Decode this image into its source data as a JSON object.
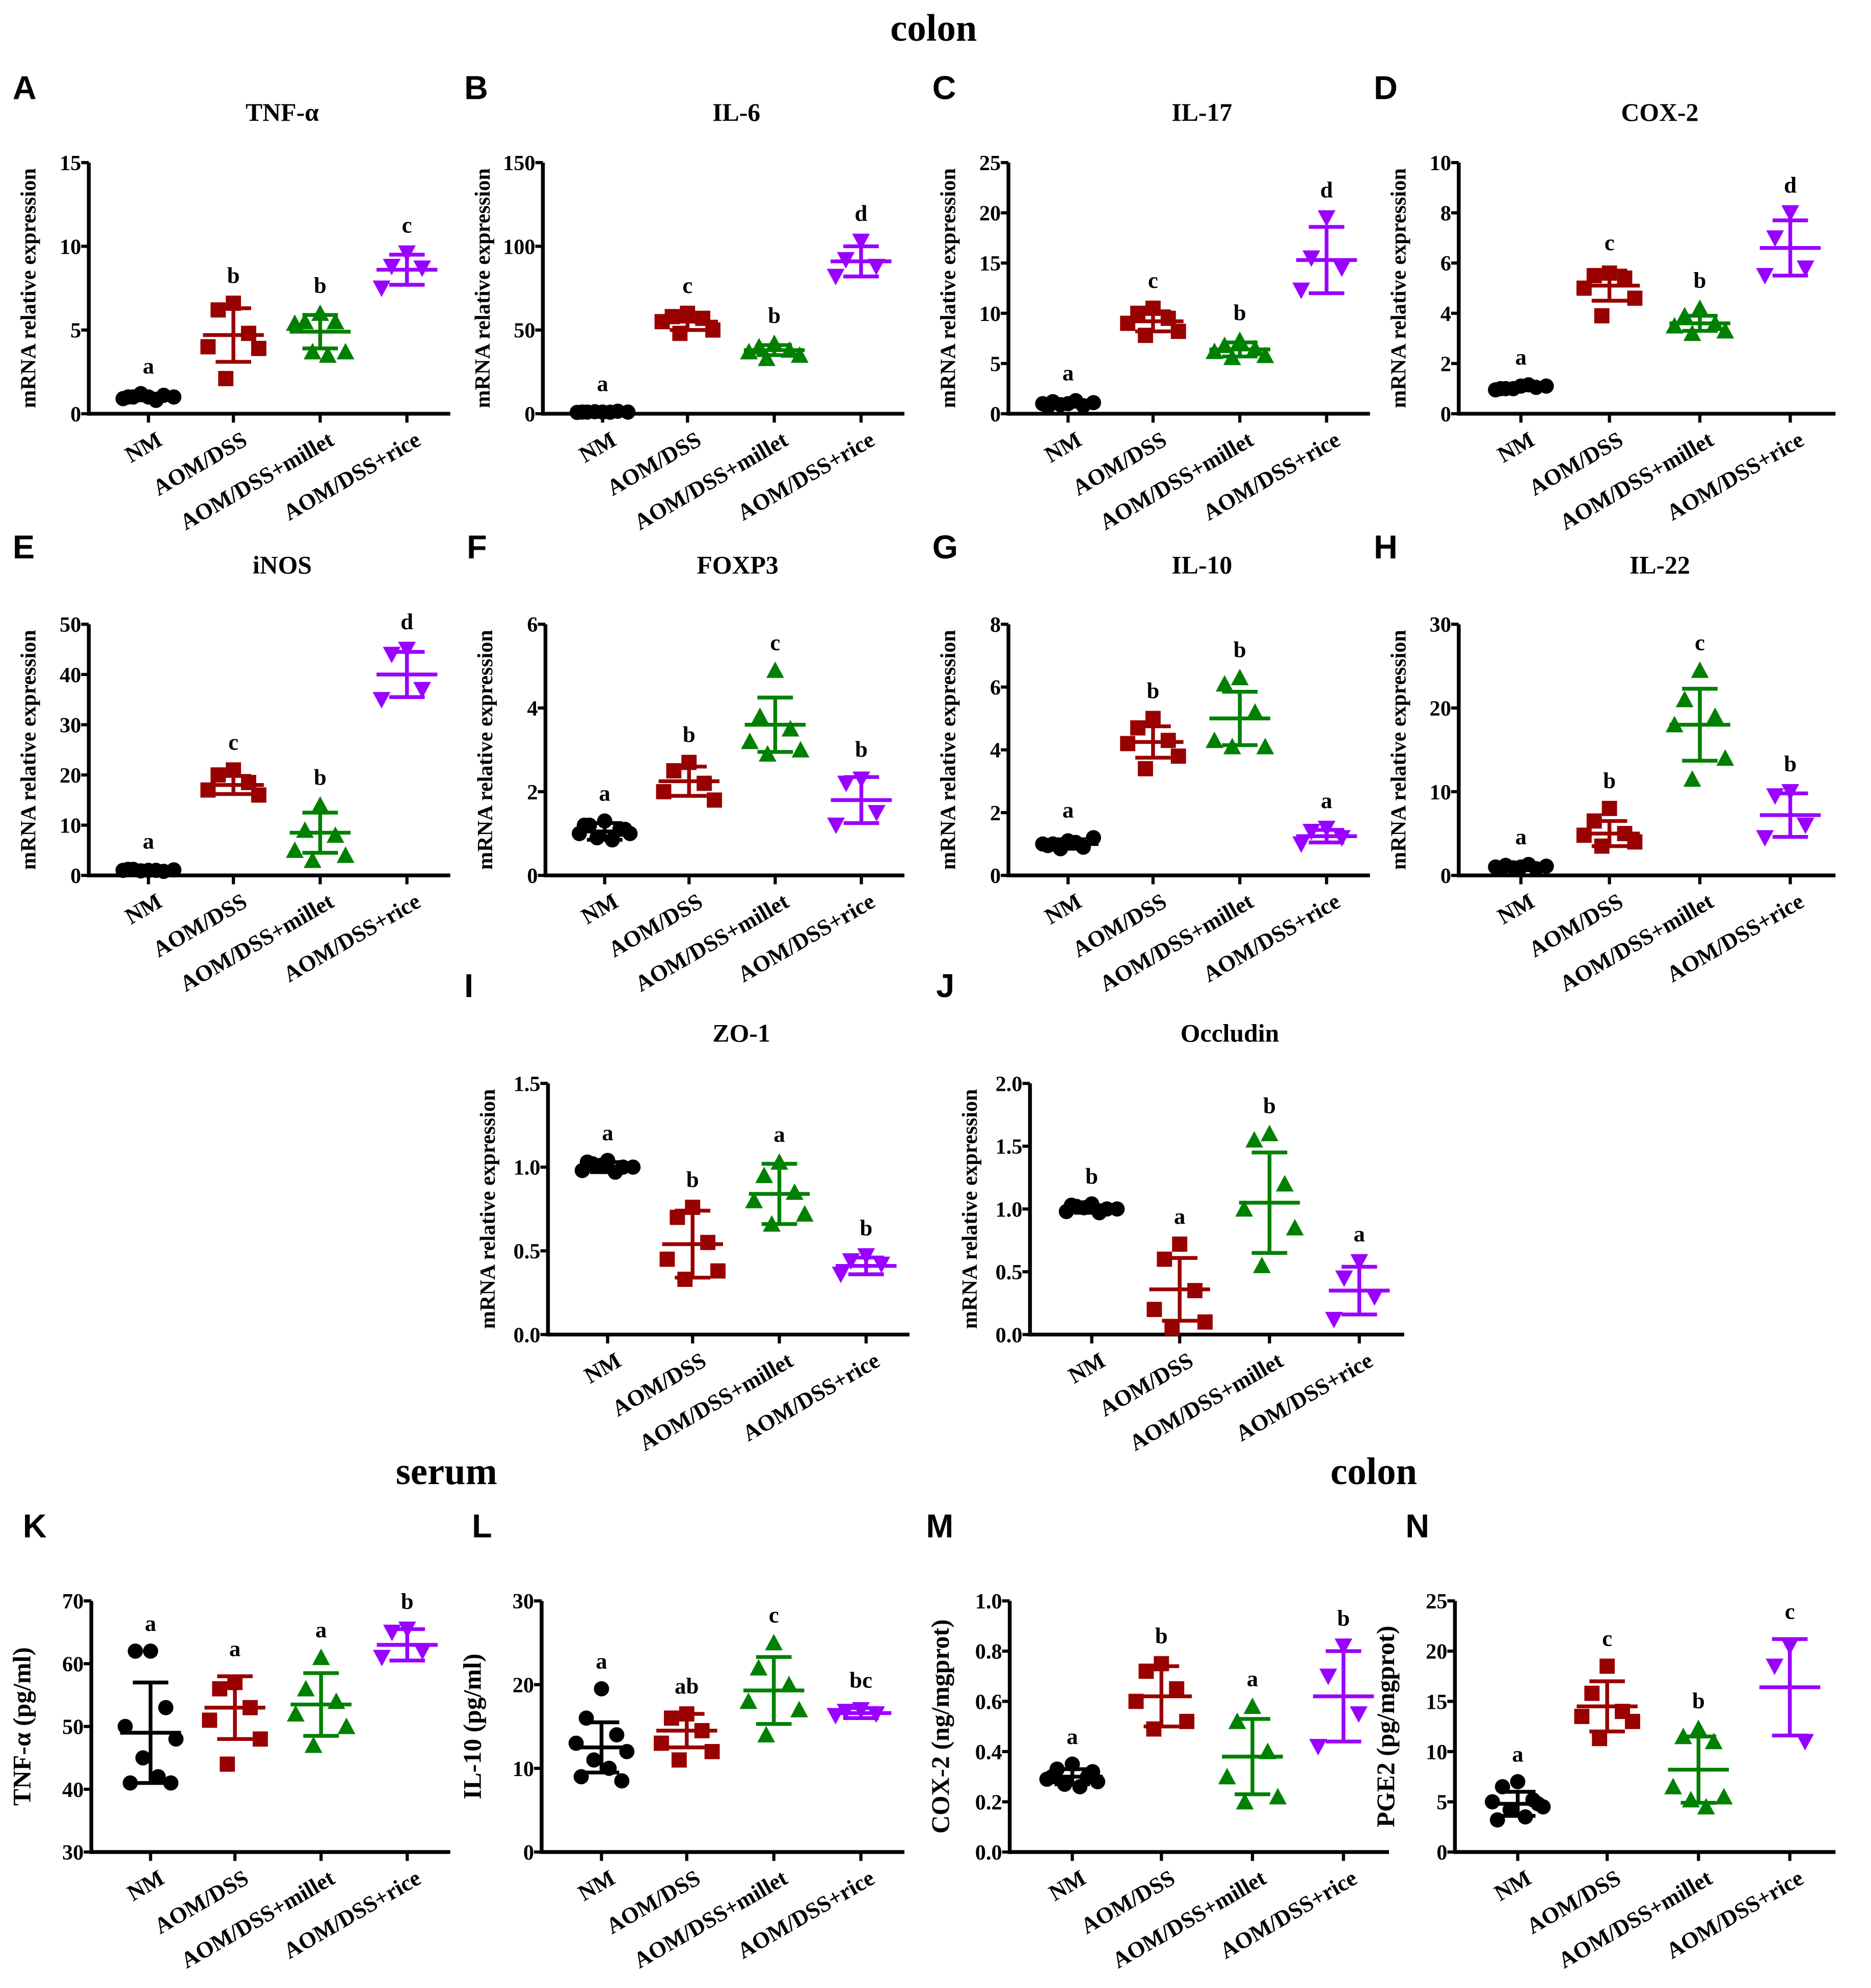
{
  "section_titles": [
    "colon",
    "serum",
    "colon"
  ],
  "colors": {
    "NM": "#000000",
    "AOM/DSS": "#990000",
    "AOM/DSS+millet": "#008000",
    "AOM/DSS+rice": "#9900ff"
  },
  "chart_data": [
    {
      "panel": "A",
      "type": "scatter",
      "title": "TNF-α",
      "ylabel": "mRNA relative expression",
      "ylim": [
        0,
        15
      ],
      "yticks": [
        0,
        5,
        10,
        15
      ],
      "categories": [
        "NM",
        "AOM/DSS",
        "AOM/DSS+millet",
        "AOM/DSS+rice"
      ],
      "groups": [
        {
          "mean": 1.0,
          "sd": 0.2,
          "letter": "a",
          "points": [
            1.0,
            1.0,
            1.1,
            0.9,
            1.0,
            1.2,
            0.8,
            1.0
          ]
        },
        {
          "mean": 4.7,
          "sd": 1.6,
          "letter": "b",
          "points": [
            6.6,
            6.2,
            4.8,
            4.0,
            3.9,
            2.1
          ]
        },
        {
          "mean": 4.9,
          "sd": 1.0,
          "letter": "b",
          "points": [
            6.0,
            5.5,
            5.5,
            5.4,
            3.7,
            3.7,
            3.5
          ]
        },
        {
          "mean": 8.6,
          "sd": 0.9,
          "letter": "c",
          "points": [
            9.6,
            8.8,
            8.7,
            7.5
          ]
        }
      ]
    },
    {
      "panel": "B",
      "type": "scatter",
      "title": "IL-6",
      "ylabel": "mRNA relative expression",
      "ylim": [
        0,
        150
      ],
      "yticks": [
        0,
        50,
        100,
        150
      ],
      "categories": [
        "NM",
        "AOM/DSS",
        "AOM/DSS+millet",
        "AOM/DSS+rice"
      ],
      "groups": [
        {
          "mean": 1.0,
          "sd": 0.5,
          "letter": "a",
          "points": [
            1,
            1,
            1.5,
            0.8,
            1,
            1.2,
            0.9,
            1
          ]
        },
        {
          "mean": 55,
          "sd": 5,
          "letter": "c",
          "points": [
            60,
            58,
            57,
            55,
            50,
            48
          ]
        },
        {
          "mean": 38,
          "sd": 3,
          "letter": "b",
          "points": [
            42,
            40,
            38,
            37,
            35,
            33
          ]
        },
        {
          "mean": 91,
          "sd": 9,
          "letter": "d",
          "points": [
            103,
            92,
            88,
            82
          ]
        }
      ]
    },
    {
      "panel": "C",
      "type": "scatter",
      "title": "IL-17",
      "ylabel": "mRNA relative expression",
      "ylim": [
        0,
        25
      ],
      "yticks": [
        0,
        5,
        10,
        15,
        20,
        25
      ],
      "categories": [
        "NM",
        "AOM/DSS",
        "AOM/DSS+millet",
        "AOM/DSS+rice"
      ],
      "groups": [
        {
          "mean": 1.0,
          "sd": 0.3,
          "letter": "a",
          "points": [
            1,
            1.2,
            0.8,
            1,
            1.1,
            0.9,
            1.3,
            0.7
          ]
        },
        {
          "mean": 9.2,
          "sd": 1.0,
          "letter": "c",
          "points": [
            10.5,
            10,
            9.5,
            9,
            8.2,
            7.8
          ]
        },
        {
          "mean": 6.4,
          "sd": 0.7,
          "letter": "b",
          "points": [
            7.3,
            6.8,
            6.5,
            6.2,
            5.8,
            5.6
          ]
        },
        {
          "mean": 15.3,
          "sd": 3.3,
          "letter": "d",
          "points": [
            19.5,
            15.5,
            14.5,
            12.3
          ]
        }
      ]
    },
    {
      "panel": "D",
      "type": "scatter",
      "title": "COX-2",
      "ylabel": "mRNA relative expression",
      "ylim": [
        0,
        10
      ],
      "yticks": [
        0,
        2,
        4,
        6,
        8,
        10
      ],
      "categories": [
        "NM",
        "AOM/DSS",
        "AOM/DSS+millet",
        "AOM/DSS+rice"
      ],
      "groups": [
        {
          "mean": 1.05,
          "sd": 0.1,
          "letter": "a",
          "points": [
            1.1,
            1.0,
            1.05,
            0.95,
            1.1,
            1.0,
            1.15,
            1.0
          ]
        },
        {
          "mean": 5.1,
          "sd": 0.6,
          "letter": "c",
          "points": [
            5.6,
            5.5,
            5.4,
            5.0,
            4.6,
            3.9
          ]
        },
        {
          "mean": 3.6,
          "sd": 0.3,
          "letter": "b",
          "points": [
            4.2,
            3.9,
            3.6,
            3.5,
            3.3,
            3.2
          ]
        },
        {
          "mean": 6.6,
          "sd": 1.1,
          "letter": "d",
          "points": [
            8.0,
            7.0,
            5.8,
            5.5
          ]
        }
      ]
    },
    {
      "panel": "E",
      "type": "scatter",
      "title": "iNOS",
      "ylabel": "mRNA relative expression",
      "ylim": [
        0,
        50
      ],
      "yticks": [
        0,
        10,
        20,
        30,
        40,
        50
      ],
      "categories": [
        "NM",
        "AOM/DSS",
        "AOM/DSS+millet",
        "AOM/DSS+rice"
      ],
      "groups": [
        {
          "mean": 1.0,
          "sd": 0.3,
          "letter": "a",
          "points": [
            1,
            1.2,
            0.8,
            1,
            1.1,
            0.9,
            1,
            1.2
          ]
        },
        {
          "mean": 18,
          "sd": 1.8,
          "letter": "c",
          "points": [
            21,
            20,
            18.5,
            17,
            16
          ]
        },
        {
          "mean": 8.5,
          "sd": 4,
          "letter": "b",
          "points": [
            14,
            9,
            8,
            5,
            4,
            3
          ]
        },
        {
          "mean": 40,
          "sd": 4.5,
          "letter": "d",
          "points": [
            45,
            44,
            37,
            35
          ]
        }
      ]
    },
    {
      "panel": "F",
      "type": "scatter",
      "title": "FOXP3",
      "ylabel": "mRNA relative expression",
      "ylim": [
        0,
        6
      ],
      "yticks": [
        0,
        2,
        4,
        6
      ],
      "categories": [
        "NM",
        "AOM/DSS",
        "AOM/DSS+millet",
        "AOM/DSS+rice"
      ],
      "groups": [
        {
          "mean": 1.05,
          "sd": 0.2,
          "letter": "a",
          "points": [
            1.3,
            1.2,
            1.1,
            1.0,
            1.0,
            0.9,
            0.85,
            1.2,
            1.1
          ]
        },
        {
          "mean": 2.25,
          "sd": 0.35,
          "letter": "b",
          "points": [
            2.7,
            2.5,
            2.2,
            2.0,
            1.8
          ]
        },
        {
          "mean": 3.6,
          "sd": 0.65,
          "letter": "c",
          "points": [
            4.9,
            3.8,
            3.5,
            3.2,
            3.0,
            2.9
          ]
        },
        {
          "mean": 1.8,
          "sd": 0.55,
          "letter": "b",
          "points": [
            2.3,
            2.2,
            1.5,
            1.2
          ]
        }
      ]
    },
    {
      "panel": "G",
      "type": "scatter",
      "title": "IL-10",
      "ylabel": "mRNA relative expression",
      "ylim": [
        0,
        8
      ],
      "yticks": [
        0,
        2,
        4,
        6,
        8
      ],
      "categories": [
        "NM",
        "AOM/DSS",
        "AOM/DSS+millet",
        "AOM/DSS+rice"
      ],
      "groups": [
        {
          "mean": 1.0,
          "sd": 0.15,
          "letter": "a",
          "points": [
            1.1,
            1.0,
            0.9,
            1.0,
            1.2,
            0.85,
            1.05,
            0.95
          ]
        },
        {
          "mean": 4.25,
          "sd": 0.5,
          "letter": "b",
          "points": [
            5.0,
            4.7,
            4.3,
            4.2,
            3.8,
            3.4
          ]
        },
        {
          "mean": 5.0,
          "sd": 0.85,
          "letter": "b",
          "points": [
            6.3,
            6.1,
            5.2,
            4.3,
            4.1,
            4.1
          ]
        },
        {
          "mean": 1.25,
          "sd": 0.2,
          "letter": "a",
          "points": [
            1.5,
            1.4,
            1.2,
            1.0
          ]
        }
      ]
    },
    {
      "panel": "H",
      "type": "scatter",
      "title": "IL-22",
      "ylabel": "mRNA relative expression",
      "ylim": [
        0,
        30
      ],
      "yticks": [
        0,
        10,
        20,
        30
      ],
      "categories": [
        "NM",
        "AOM/DSS",
        "AOM/DSS+millet",
        "AOM/DSS+rice"
      ],
      "groups": [
        {
          "mean": 1.0,
          "sd": 0.3,
          "letter": "a",
          "points": [
            1,
            1.2,
            0.8,
            1,
            1.1,
            0.9,
            1.3,
            0.7
          ]
        },
        {
          "mean": 5.0,
          "sd": 1.5,
          "letter": "b",
          "points": [
            8,
            6.5,
            5,
            4.8,
            4,
            3.5
          ]
        },
        {
          "mean": 18,
          "sd": 4.3,
          "letter": "c",
          "points": [
            24.5,
            21,
            19,
            18,
            14,
            11.5
          ]
        },
        {
          "mean": 7.2,
          "sd": 2.6,
          "letter": "b",
          "points": [
            10,
            9.5,
            6,
            4.5
          ]
        }
      ]
    },
    {
      "panel": "I",
      "type": "scatter",
      "title": "ZO-1",
      "ylabel": "mRNA relative expression",
      "ylim": [
        0,
        1.5
      ],
      "yticks": [
        0.0,
        0.5,
        1.0,
        1.5
      ],
      "categories": [
        "NM",
        "AOM/DSS",
        "AOM/DSS+millet",
        "AOM/DSS+rice"
      ],
      "groups": [
        {
          "mean": 1.0,
          "sd": 0.03,
          "letter": "a",
          "points": [
            1.04,
            1.02,
            1.0,
            0.98,
            1.0,
            1.01,
            0.97,
            1.03
          ]
        },
        {
          "mean": 0.54,
          "sd": 0.2,
          "letter": "b",
          "points": [
            0.76,
            0.7,
            0.55,
            0.45,
            0.38,
            0.33
          ]
        },
        {
          "mean": 0.84,
          "sd": 0.18,
          "letter": "a",
          "points": [
            1.03,
            0.95,
            0.85,
            0.8,
            0.72,
            0.66
          ]
        },
        {
          "mean": 0.41,
          "sd": 0.05,
          "letter": "b",
          "points": [
            0.47,
            0.44,
            0.42,
            0.36
          ]
        }
      ]
    },
    {
      "panel": "J",
      "type": "scatter",
      "title": "Occludin",
      "ylabel": "mRNA relative expression",
      "ylim": [
        0,
        2.0
      ],
      "yticks": [
        0.0,
        0.5,
        1.0,
        1.5,
        2.0
      ],
      "categories": [
        "NM",
        "AOM/DSS",
        "AOM/DSS+millet",
        "AOM/DSS+rice"
      ],
      "groups": [
        {
          "mean": 1.0,
          "sd": 0.03,
          "letter": "b",
          "points": [
            1.04,
            1.02,
            1.0,
            0.98,
            1.0,
            1.01,
            0.97,
            1.03
          ]
        },
        {
          "mean": 0.36,
          "sd": 0.25,
          "letter": "a",
          "points": [
            0.72,
            0.6,
            0.35,
            0.2,
            0.1,
            0.05
          ]
        },
        {
          "mean": 1.05,
          "sd": 0.4,
          "letter": "b",
          "points": [
            1.6,
            1.55,
            1.2,
            1.0,
            0.85,
            0.55
          ]
        },
        {
          "mean": 0.35,
          "sd": 0.19,
          "letter": "a",
          "points": [
            0.58,
            0.45,
            0.3,
            0.12
          ]
        }
      ]
    },
    {
      "panel": "K",
      "type": "scatter",
      "title": "",
      "ylabel": "TNF-α (pg/ml)",
      "ylim": [
        30,
        70
      ],
      "yticks": [
        30,
        40,
        50,
        60,
        70
      ],
      "categories": [
        "NM",
        "AOM/DSS",
        "AOM/DSS+millet",
        "AOM/DSS+rice"
      ],
      "groups": [
        {
          "mean": 49,
          "sd": 8,
          "letter": "a",
          "points": [
            62,
            62,
            53,
            50,
            48,
            45,
            42,
            41,
            41
          ]
        },
        {
          "mean": 53,
          "sd": 5,
          "letter": "a",
          "points": [
            57,
            56,
            53,
            51,
            48,
            44
          ]
        },
        {
          "mean": 53.5,
          "sd": 5,
          "letter": "a",
          "points": [
            61,
            56,
            54,
            52,
            50,
            47
          ]
        },
        {
          "mean": 63,
          "sd": 2.5,
          "letter": "b",
          "points": [
            65.5,
            65,
            62,
            61
          ]
        }
      ]
    },
    {
      "panel": "L",
      "type": "scatter",
      "title": "",
      "ylabel": "IL-10 (pg/ml)",
      "ylim": [
        0,
        30
      ],
      "yticks": [
        0,
        10,
        20,
        30
      ],
      "categories": [
        "NM",
        "AOM/DSS",
        "AOM/DSS+millet",
        "AOM/DSS+rice"
      ],
      "groups": [
        {
          "mean": 12.5,
          "sd": 3,
          "letter": "a",
          "points": [
            19.5,
            16,
            14,
            13,
            12,
            11,
            10,
            9,
            8.5
          ]
        },
        {
          "mean": 14.5,
          "sd": 2,
          "letter": "ab",
          "points": [
            16.5,
            16,
            14.5,
            13,
            12,
            11
          ]
        },
        {
          "mean": 19.3,
          "sd": 4,
          "letter": "c",
          "points": [
            25,
            22,
            20,
            18,
            17,
            14
          ]
        },
        {
          "mean": 16.6,
          "sd": 0.6,
          "letter": "bc",
          "points": [
            17,
            16.8,
            16.5,
            16.3
          ]
        }
      ]
    },
    {
      "panel": "M",
      "type": "scatter",
      "title": "",
      "ylabel": "COX-2 (ng/mgprot)",
      "ylim": [
        0,
        1.0
      ],
      "yticks": [
        0.0,
        0.2,
        0.4,
        0.6,
        0.8,
        1.0
      ],
      "categories": [
        "NM",
        "AOM/DSS",
        "AOM/DSS+millet",
        "AOM/DSS+rice"
      ],
      "groups": [
        {
          "mean": 0.3,
          "sd": 0.03,
          "letter": "a",
          "points": [
            0.35,
            0.33,
            0.3,
            0.29,
            0.28,
            0.27,
            0.26,
            0.3,
            0.32
          ]
        },
        {
          "mean": 0.62,
          "sd": 0.12,
          "letter": "b",
          "points": [
            0.75,
            0.72,
            0.65,
            0.6,
            0.52,
            0.49
          ]
        },
        {
          "mean": 0.38,
          "sd": 0.15,
          "letter": "a",
          "points": [
            0.58,
            0.52,
            0.4,
            0.3,
            0.22,
            0.2
          ]
        },
        {
          "mean": 0.62,
          "sd": 0.18,
          "letter": "b",
          "points": [
            0.82,
            0.7,
            0.55,
            0.42
          ]
        }
      ]
    },
    {
      "panel": "N",
      "type": "scatter",
      "title": "",
      "ylabel": "PGE2 (pg/mgprot)",
      "ylim": [
        0,
        25
      ],
      "yticks": [
        0,
        5,
        10,
        15,
        20,
        25
      ],
      "categories": [
        "NM",
        "AOM/DSS",
        "AOM/DSS+millet",
        "AOM/DSS+rice"
      ],
      "groups": [
        {
          "mean": 4.8,
          "sd": 1.2,
          "letter": "a",
          "points": [
            7,
            6.5,
            5.2,
            5,
            4.5,
            4.2,
            3.5,
            3.2,
            4.8
          ]
        },
        {
          "mean": 14.5,
          "sd": 2.5,
          "letter": "c",
          "points": [
            18.5,
            15.8,
            14,
            13.5,
            13,
            11.3
          ]
        },
        {
          "mean": 8.2,
          "sd": 3.3,
          "letter": "b",
          "points": [
            12.3,
            11.5,
            11,
            6.5,
            5.5,
            5.2,
            4.5
          ]
        },
        {
          "mean": 16.4,
          "sd": 4.8,
          "letter": "c",
          "points": [
            20.5,
            18.5,
            11
          ]
        }
      ]
    }
  ]
}
